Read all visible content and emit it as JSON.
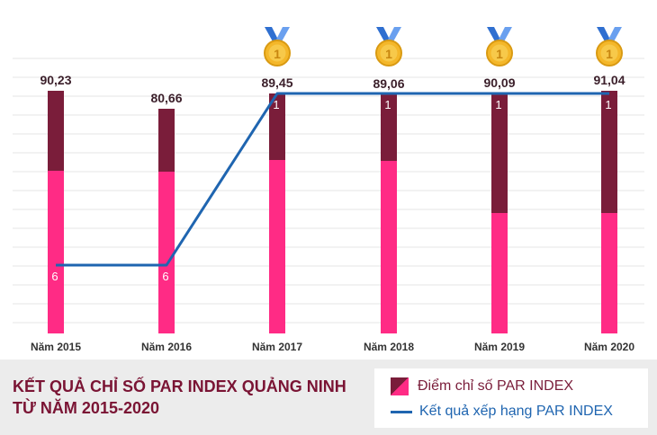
{
  "chart_data": {
    "type": "bar",
    "categories": [
      "Năm 2015",
      "Năm 2016",
      "Năm 2017",
      "Năm 2018",
      "Năm 2019",
      "Năm 2020"
    ],
    "series": [
      {
        "name": "Điểm chỉ số PAR INDEX",
        "type": "bar",
        "values": [
          90.23,
          80.66,
          89.45,
          89.06,
          90.09,
          91.04
        ],
        "labels": [
          "90,23",
          "80,66",
          "89,45",
          "89,06",
          "90,09",
          "91,04"
        ]
      },
      {
        "name": "Kết quả xếp hạng PAR INDEX",
        "type": "line",
        "values": [
          6,
          6,
          1,
          1,
          1,
          1
        ],
        "labels": [
          "6",
          "6",
          "1",
          "1",
          "1",
          "1"
        ]
      }
    ],
    "medals": [
      false,
      false,
      true,
      true,
      true,
      true
    ],
    "medal_text": "1",
    "colors": {
      "bar_top": "#7a1d3a",
      "bar_bottom": "#ff2b85",
      "line": "#1f65b0",
      "medal_gold": "#f4b72a",
      "medal_ribbon": "#2f6fd0"
    },
    "grid": true,
    "legend_position": "bottom-right"
  },
  "title": {
    "line1": "KẾT QUẢ CHỈ SỐ PAR INDEX QUẢNG NINH",
    "line2": "TỪ NĂM 2015-2020"
  },
  "legend": {
    "bar_label": "Điểm chỉ số PAR INDEX",
    "line_label": "Kết quả xếp hạng PAR INDEX"
  }
}
